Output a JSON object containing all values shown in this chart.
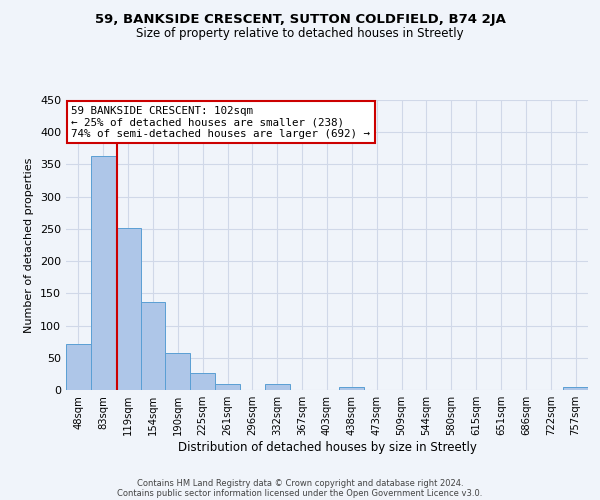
{
  "title1": "59, BANKSIDE CRESCENT, SUTTON COLDFIELD, B74 2JA",
  "title2": "Size of property relative to detached houses in Streetly",
  "xlabel": "Distribution of detached houses by size in Streetly",
  "ylabel": "Number of detached properties",
  "bar_values": [
    72,
    363,
    252,
    136,
    58,
    27,
    10,
    0,
    10,
    0,
    0,
    4,
    0,
    0,
    0,
    0,
    0,
    0,
    0,
    0,
    4
  ],
  "bin_labels": [
    "48sqm",
    "83sqm",
    "119sqm",
    "154sqm",
    "190sqm",
    "225sqm",
    "261sqm",
    "296sqm",
    "332sqm",
    "367sqm",
    "403sqm",
    "438sqm",
    "473sqm",
    "509sqm",
    "544sqm",
    "580sqm",
    "615sqm",
    "651sqm",
    "686sqm",
    "722sqm",
    "757sqm"
  ],
  "bar_color": "#aec6e8",
  "bar_edge_color": "#5a9fd4",
  "grid_color": "#d0d8e8",
  "vline_x": 1.54,
  "vline_color": "#cc0000",
  "annotation_title": "59 BANKSIDE CRESCENT: 102sqm",
  "annotation_line1": "← 25% of detached houses are smaller (238)",
  "annotation_line2": "74% of semi-detached houses are larger (692) →",
  "annotation_box_color": "#ffffff",
  "annotation_box_edge": "#cc0000",
  "ylim": [
    0,
    450
  ],
  "yticks": [
    0,
    50,
    100,
    150,
    200,
    250,
    300,
    350,
    400,
    450
  ],
  "footnote1": "Contains HM Land Registry data © Crown copyright and database right 2024.",
  "footnote2": "Contains public sector information licensed under the Open Government Licence v3.0.",
  "bg_color": "#f0f4fa"
}
